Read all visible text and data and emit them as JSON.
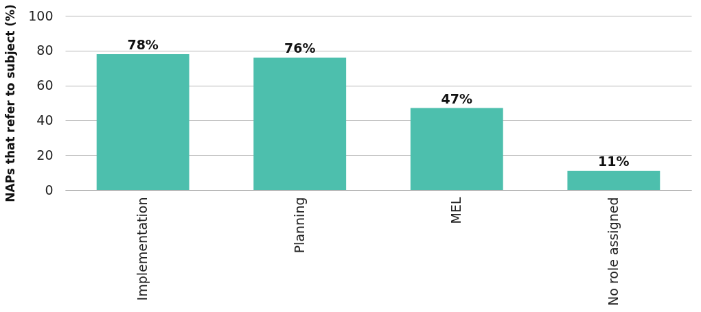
{
  "chart_data": {
    "type": "bar",
    "ylabel": "NAPs that refer to subject (%)",
    "categories": [
      "Implementation",
      "Planning",
      "MEL",
      "No role assigned"
    ],
    "values": [
      78,
      76,
      47,
      11
    ],
    "value_labels": [
      "78%",
      "76%",
      "47%",
      "11%"
    ],
    "color": "#4dbfad",
    "ylim": [
      0,
      100
    ],
    "yticks": [
      0,
      20,
      40,
      60,
      80,
      100
    ],
    "grid": "y"
  }
}
